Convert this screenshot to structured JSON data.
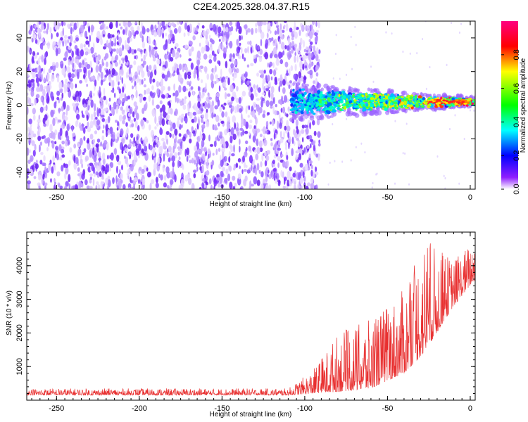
{
  "title": "C2E4.2025.328.04.37.R15",
  "chart_data": [
    {
      "type": "heatmap",
      "xlabel": "Height of straight line (km)",
      "ylabel": "Frequency (Hz)",
      "xlim": [
        -268,
        3
      ],
      "ylim": [
        -50,
        50
      ],
      "xticks": [
        -250,
        -200,
        -150,
        -100,
        -50,
        0
      ],
      "yticks": [
        -40,
        -20,
        0,
        20,
        40
      ],
      "colorbar": {
        "label": "Normalized spectral amplitude",
        "range": [
          0,
          1
        ],
        "ticks": [
          "0.0",
          "0.2",
          "0.4",
          "0.6",
          "0.8"
        ],
        "colors": [
          "#ffffff",
          "#8000ff",
          "#0000ff",
          "#00ffff",
          "#00ff00",
          "#ffff00",
          "#ff0000",
          "#ff00a0"
        ]
      },
      "regions": [
        {
          "x_range": [
            -268,
            -91
          ],
          "freq_range": [
            -50,
            50
          ],
          "amplitude": "0.0-0.15",
          "description": "broadband noise"
        },
        {
          "x_range": [
            -108,
            3
          ],
          "freq_center": 2,
          "freq_halfwidth": 8,
          "amplitude": "0.2-0.9",
          "description": "signal band narrowing toward 0 km"
        }
      ]
    },
    {
      "type": "line",
      "xlabel": "Height of straight line (km)",
      "ylabel": "SNR (10 * v/v)",
      "xlim": [
        -268,
        3
      ],
      "ylim": [
        0,
        5000
      ],
      "xticks": [
        -250,
        -200,
        -150,
        -100,
        -50,
        0
      ],
      "yticks": [
        1000,
        2000,
        3000,
        4000
      ],
      "color": "#e83030",
      "envelope": [
        {
          "x": -268,
          "base": 150,
          "peak": 350
        },
        {
          "x": -110,
          "base": 150,
          "peak": 350
        },
        {
          "x": -95,
          "base": 200,
          "peak": 900
        },
        {
          "x": -80,
          "base": 250,
          "peak": 2000
        },
        {
          "x": -60,
          "base": 350,
          "peak": 2400
        },
        {
          "x": -40,
          "base": 800,
          "peak": 3300
        },
        {
          "x": -28,
          "base": 1400,
          "peak": 4800
        },
        {
          "x": -10,
          "base": 2800,
          "peak": 4200
        },
        {
          "x": 3,
          "base": 3600,
          "peak": 4800
        }
      ]
    }
  ]
}
